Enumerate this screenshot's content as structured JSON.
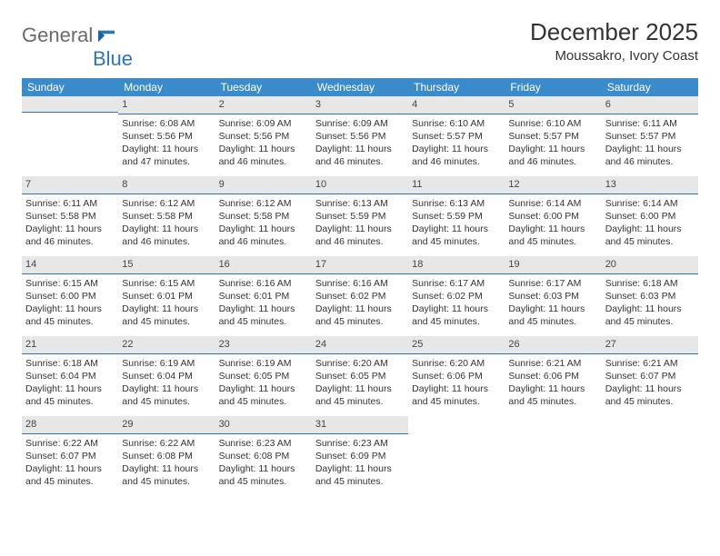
{
  "logo": {
    "general": "General",
    "blue": "Blue"
  },
  "header": {
    "month_title": "December 2025",
    "month_title_fontsize": 26,
    "location": "Moussakro, Ivory Coast",
    "location_fontsize": 15
  },
  "colors": {
    "header_bg": "#3b8bca",
    "header_text": "#ffffff",
    "daynum_bg": "#e7e7e7",
    "rule": "#2f74b5",
    "body_text": "#333333"
  },
  "weekdays": [
    "Sunday",
    "Monday",
    "Tuesday",
    "Wednesday",
    "Thursday",
    "Friday",
    "Saturday"
  ],
  "weeks": [
    [
      null,
      {
        "n": "1",
        "sr": "6:08 AM",
        "ss": "5:56 PM",
        "dl": "11 hours and 47 minutes."
      },
      {
        "n": "2",
        "sr": "6:09 AM",
        "ss": "5:56 PM",
        "dl": "11 hours and 46 minutes."
      },
      {
        "n": "3",
        "sr": "6:09 AM",
        "ss": "5:56 PM",
        "dl": "11 hours and 46 minutes."
      },
      {
        "n": "4",
        "sr": "6:10 AM",
        "ss": "5:57 PM",
        "dl": "11 hours and 46 minutes."
      },
      {
        "n": "5",
        "sr": "6:10 AM",
        "ss": "5:57 PM",
        "dl": "11 hours and 46 minutes."
      },
      {
        "n": "6",
        "sr": "6:11 AM",
        "ss": "5:57 PM",
        "dl": "11 hours and 46 minutes."
      }
    ],
    [
      {
        "n": "7",
        "sr": "6:11 AM",
        "ss": "5:58 PM",
        "dl": "11 hours and 46 minutes."
      },
      {
        "n": "8",
        "sr": "6:12 AM",
        "ss": "5:58 PM",
        "dl": "11 hours and 46 minutes."
      },
      {
        "n": "9",
        "sr": "6:12 AM",
        "ss": "5:58 PM",
        "dl": "11 hours and 46 minutes."
      },
      {
        "n": "10",
        "sr": "6:13 AM",
        "ss": "5:59 PM",
        "dl": "11 hours and 46 minutes."
      },
      {
        "n": "11",
        "sr": "6:13 AM",
        "ss": "5:59 PM",
        "dl": "11 hours and 45 minutes."
      },
      {
        "n": "12",
        "sr": "6:14 AM",
        "ss": "6:00 PM",
        "dl": "11 hours and 45 minutes."
      },
      {
        "n": "13",
        "sr": "6:14 AM",
        "ss": "6:00 PM",
        "dl": "11 hours and 45 minutes."
      }
    ],
    [
      {
        "n": "14",
        "sr": "6:15 AM",
        "ss": "6:00 PM",
        "dl": "11 hours and 45 minutes."
      },
      {
        "n": "15",
        "sr": "6:15 AM",
        "ss": "6:01 PM",
        "dl": "11 hours and 45 minutes."
      },
      {
        "n": "16",
        "sr": "6:16 AM",
        "ss": "6:01 PM",
        "dl": "11 hours and 45 minutes."
      },
      {
        "n": "17",
        "sr": "6:16 AM",
        "ss": "6:02 PM",
        "dl": "11 hours and 45 minutes."
      },
      {
        "n": "18",
        "sr": "6:17 AM",
        "ss": "6:02 PM",
        "dl": "11 hours and 45 minutes."
      },
      {
        "n": "19",
        "sr": "6:17 AM",
        "ss": "6:03 PM",
        "dl": "11 hours and 45 minutes."
      },
      {
        "n": "20",
        "sr": "6:18 AM",
        "ss": "6:03 PM",
        "dl": "11 hours and 45 minutes."
      }
    ],
    [
      {
        "n": "21",
        "sr": "6:18 AM",
        "ss": "6:04 PM",
        "dl": "11 hours and 45 minutes."
      },
      {
        "n": "22",
        "sr": "6:19 AM",
        "ss": "6:04 PM",
        "dl": "11 hours and 45 minutes."
      },
      {
        "n": "23",
        "sr": "6:19 AM",
        "ss": "6:05 PM",
        "dl": "11 hours and 45 minutes."
      },
      {
        "n": "24",
        "sr": "6:20 AM",
        "ss": "6:05 PM",
        "dl": "11 hours and 45 minutes."
      },
      {
        "n": "25",
        "sr": "6:20 AM",
        "ss": "6:06 PM",
        "dl": "11 hours and 45 minutes."
      },
      {
        "n": "26",
        "sr": "6:21 AM",
        "ss": "6:06 PM",
        "dl": "11 hours and 45 minutes."
      },
      {
        "n": "27",
        "sr": "6:21 AM",
        "ss": "6:07 PM",
        "dl": "11 hours and 45 minutes."
      }
    ],
    [
      {
        "n": "28",
        "sr": "6:22 AM",
        "ss": "6:07 PM",
        "dl": "11 hours and 45 minutes."
      },
      {
        "n": "29",
        "sr": "6:22 AM",
        "ss": "6:08 PM",
        "dl": "11 hours and 45 minutes."
      },
      {
        "n": "30",
        "sr": "6:23 AM",
        "ss": "6:08 PM",
        "dl": "11 hours and 45 minutes."
      },
      {
        "n": "31",
        "sr": "6:23 AM",
        "ss": "6:09 PM",
        "dl": "11 hours and 45 minutes."
      },
      null,
      null,
      null
    ]
  ],
  "labels": {
    "sunrise": "Sunrise:",
    "sunset": "Sunset:",
    "daylight": "Daylight:"
  }
}
